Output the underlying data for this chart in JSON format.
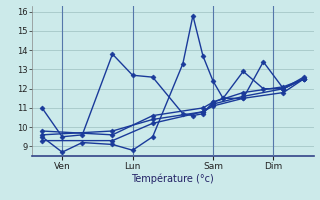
{
  "title": "Température (°c)",
  "background_color": "#cceaea",
  "grid_color": "#aacccc",
  "line_color": "#1a3a9a",
  "vline_color": "#5577aa",
  "ylim": [
    8.5,
    16.3
  ],
  "yticks": [
    9,
    10,
    11,
    12,
    13,
    14,
    15,
    16
  ],
  "xlim": [
    0,
    28
  ],
  "day_positions": [
    3,
    10,
    18,
    24
  ],
  "day_labels": [
    "Ven",
    "Lun",
    "Sam",
    "Dim"
  ],
  "series": [
    {
      "x": [
        1,
        3,
        5,
        8,
        10,
        12,
        15,
        16,
        17,
        18,
        19,
        21,
        23,
        25,
        27
      ],
      "y": [
        11.0,
        9.5,
        9.6,
        13.8,
        12.7,
        12.6,
        10.7,
        10.6,
        10.7,
        11.3,
        11.5,
        12.9,
        12.0,
        12.0,
        12.5
      ]
    },
    {
      "x": [
        1,
        3,
        5,
        8,
        10,
        12,
        15,
        16,
        17,
        18,
        19,
        21,
        23,
        25,
        27
      ],
      "y": [
        9.5,
        8.7,
        9.2,
        9.1,
        8.8,
        9.5,
        13.3,
        15.8,
        13.7,
        12.4,
        11.5,
        11.5,
        13.4,
        12.0,
        12.5
      ]
    },
    {
      "x": [
        1,
        8,
        12,
        17,
        18,
        21,
        25,
        27
      ],
      "y": [
        9.6,
        9.8,
        10.4,
        10.8,
        11.2,
        11.6,
        12.0,
        12.6
      ]
    },
    {
      "x": [
        1,
        8,
        12,
        17,
        18,
        21,
        25,
        27
      ],
      "y": [
        9.3,
        9.3,
        10.2,
        10.8,
        11.1,
        11.5,
        11.8,
        12.5
      ]
    },
    {
      "x": [
        1,
        8,
        12,
        17,
        18,
        21,
        25,
        27
      ],
      "y": [
        9.8,
        9.6,
        10.6,
        11.0,
        11.3,
        11.8,
        12.1,
        12.5
      ]
    }
  ]
}
